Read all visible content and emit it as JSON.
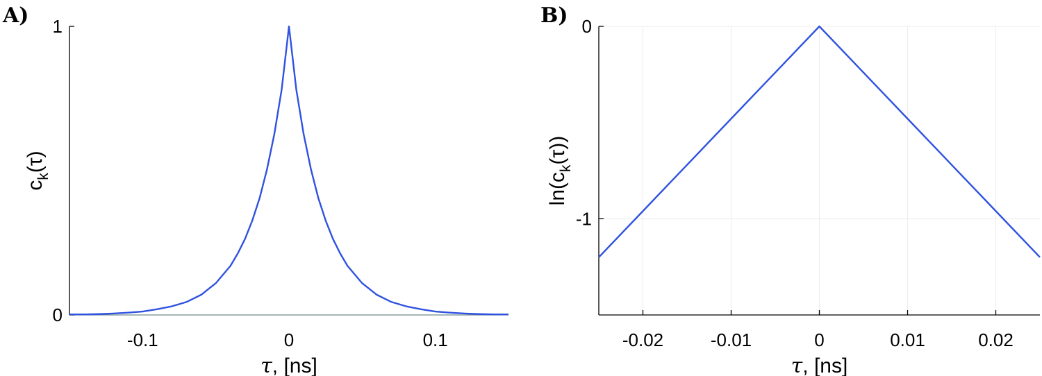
{
  "chart_data": [
    {
      "type": "line",
      "panel_label": "A)",
      "xlabel": "τ, [ns]",
      "ylabel": "c_k(τ)",
      "ylabel_main": "c",
      "ylabel_sub": "k",
      "ylabel_rest": "(τ)",
      "xlim": [
        -0.15,
        0.15
      ],
      "ylim": [
        0,
        1
      ],
      "xticks": [
        -0.1,
        0,
        0.1
      ],
      "xtick_labels": [
        "-0.1",
        "0",
        "0.1"
      ],
      "yticks": [
        0,
        1
      ],
      "ytick_labels": [
        "0",
        "1"
      ],
      "grid": false,
      "color": "#2f52e0",
      "series": [
        {
          "x": [
            -0.15,
            -0.14,
            -0.13,
            -0.12,
            -0.11,
            -0.1,
            -0.09,
            -0.08,
            -0.07,
            -0.06,
            -0.05,
            -0.04,
            -0.035,
            -0.03,
            -0.025,
            -0.02,
            -0.015,
            -0.01,
            -0.005,
            0,
            0.005,
            0.01,
            0.015,
            0.02,
            0.025,
            0.03,
            0.035,
            0.04,
            0.05,
            0.06,
            0.07,
            0.08,
            0.09,
            0.1,
            0.11,
            0.12,
            0.13,
            0.14,
            0.15
          ],
          "y": [
            0.002,
            0.002,
            0.003,
            0.005,
            0.008,
            0.012,
            0.02,
            0.03,
            0.045,
            0.07,
            0.11,
            0.17,
            0.213,
            0.264,
            0.328,
            0.406,
            0.505,
            0.627,
            0.781,
            1.0,
            0.781,
            0.627,
            0.505,
            0.406,
            0.328,
            0.264,
            0.213,
            0.17,
            0.11,
            0.07,
            0.045,
            0.03,
            0.02,
            0.012,
            0.008,
            0.005,
            0.003,
            0.002,
            0.002
          ]
        }
      ]
    },
    {
      "type": "line",
      "panel_label": "B)",
      "xlabel": "τ, [ns]",
      "ylabel": "ln(c_k(τ))",
      "ylabel_main": "ln(c",
      "ylabel_sub": "k",
      "ylabel_rest": "(τ))",
      "xlim": [
        -0.025,
        0.025
      ],
      "ylim": [
        -1.5,
        0
      ],
      "xticks": [
        -0.02,
        -0.01,
        0,
        0.01,
        0.02
      ],
      "xtick_labels": [
        "-0.02",
        "-0.01",
        "0",
        "0.01",
        "0.02"
      ],
      "yticks": [
        -1,
        0
      ],
      "ytick_labels": [
        "-1",
        "0"
      ],
      "grid": true,
      "color": "#2f52e0",
      "series": [
        {
          "x": [
            -0.025,
            -0.02,
            -0.015,
            -0.01,
            -0.005,
            0,
            0.005,
            0.01,
            0.015,
            0.02,
            0.025
          ],
          "y": [
            -1.2,
            -0.96,
            -0.72,
            -0.48,
            -0.24,
            0,
            -0.24,
            -0.48,
            -0.72,
            -0.96,
            -1.2
          ]
        }
      ]
    }
  ]
}
